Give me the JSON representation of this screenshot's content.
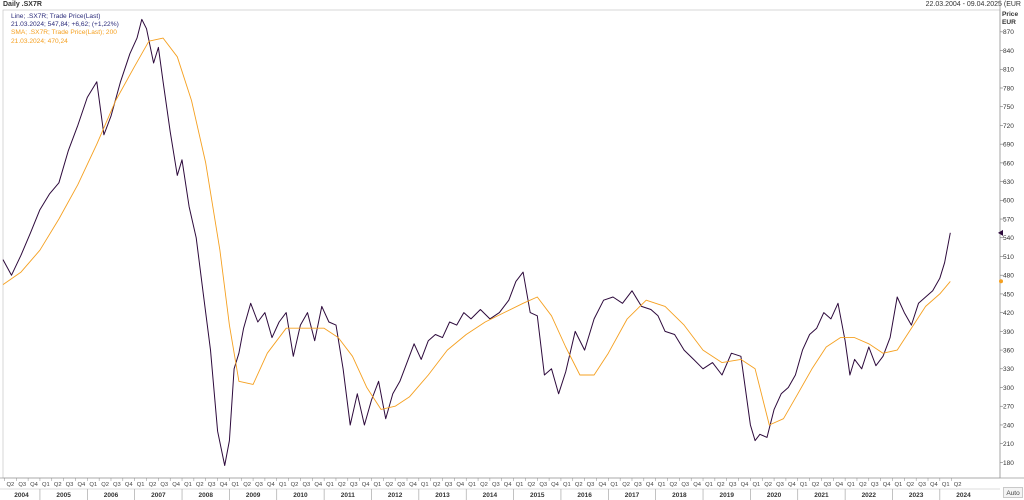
{
  "header": {
    "title": "Daily .SX7R",
    "date_range": "22.03.2004 - 09.04.2025 (EUR"
  },
  "legend": {
    "line_name": "Line; .SX7R; Trade Price(Last)",
    "line_value": "21.03.2024; 547,84; +6,62; (+1,22%)",
    "sma_name": "SMA; .SX7R; Trade Price(Last); 200",
    "sma_value": "21.03.2024; 470,24"
  },
  "axis": {
    "price_label": "Price",
    "currency": "EUR",
    "auto_button": "Auto"
  },
  "colors": {
    "price_line": "#2d0a3c",
    "sma_line": "#f5a020",
    "grid": "#e6e6e6"
  },
  "chart_data": {
    "type": "line",
    "title": "Daily .SX7R",
    "xlabel": "",
    "ylabel": "Price EUR",
    "ylim": [
      155,
      905
    ],
    "xlim": [
      2004.22,
      2025.27
    ],
    "y_ticks": [
      180,
      210,
      240,
      270,
      300,
      330,
      360,
      390,
      420,
      450,
      480,
      510,
      540,
      570,
      600,
      630,
      660,
      690,
      720,
      750,
      780,
      810,
      840,
      870
    ],
    "quarter_labels_first": "Q2",
    "year_labels": [
      "2004",
      "2005",
      "2006",
      "2007",
      "2008",
      "2009",
      "2010",
      "2011",
      "2012",
      "2013",
      "2014",
      "2015",
      "2016",
      "2017",
      "2018",
      "2019",
      "2020",
      "2021",
      "2022",
      "2023",
      "2024"
    ],
    "last_value": 547.84,
    "last_sma_value": 470.24,
    "series": [
      {
        "name": "Line; .SX7R; Trade Price(Last)",
        "x": [
          2004.22,
          2004.4,
          2004.6,
          2004.8,
          2005.0,
          2005.2,
          2005.4,
          2005.6,
          2005.8,
          2006.0,
          2006.2,
          2006.35,
          2006.5,
          2006.7,
          2006.9,
          2007.05,
          2007.15,
          2007.25,
          2007.4,
          2007.5,
          2007.6,
          2007.75,
          2007.9,
          2008.0,
          2008.15,
          2008.3,
          2008.45,
          2008.6,
          2008.75,
          2008.9,
          2009.0,
          2009.1,
          2009.2,
          2009.3,
          2009.45,
          2009.6,
          2009.75,
          2009.9,
          2010.05,
          2010.2,
          2010.35,
          2010.5,
          2010.65,
          2010.8,
          2010.95,
          2011.1,
          2011.25,
          2011.4,
          2011.55,
          2011.7,
          2011.85,
          2012.0,
          2012.15,
          2012.3,
          2012.45,
          2012.6,
          2012.75,
          2012.9,
          2013.05,
          2013.2,
          2013.35,
          2013.5,
          2013.65,
          2013.8,
          2013.95,
          2014.1,
          2014.3,
          2014.5,
          2014.7,
          2014.9,
          2015.05,
          2015.2,
          2015.35,
          2015.5,
          2015.65,
          2015.8,
          2015.95,
          2016.1,
          2016.3,
          2016.5,
          2016.7,
          2016.9,
          2017.1,
          2017.3,
          2017.5,
          2017.7,
          2017.9,
          2018.05,
          2018.2,
          2018.4,
          2018.6,
          2018.8,
          2019.0,
          2019.2,
          2019.4,
          2019.6,
          2019.8,
          2020.0,
          2020.1,
          2020.2,
          2020.35,
          2020.5,
          2020.65,
          2020.8,
          2020.95,
          2021.1,
          2021.25,
          2021.4,
          2021.55,
          2021.7,
          2021.85,
          2022.0,
          2022.1,
          2022.2,
          2022.35,
          2022.5,
          2022.65,
          2022.8,
          2022.95,
          2023.1,
          2023.25,
          2023.4,
          2023.55,
          2023.7,
          2023.85,
          2024.0,
          2024.1,
          2024.22
        ],
        "values": [
          505,
          480,
          512,
          548,
          585,
          610,
          628,
          680,
          720,
          765,
          790,
          705,
          735,
          790,
          835,
          860,
          890,
          875,
          820,
          845,
          790,
          710,
          640,
          665,
          590,
          540,
          450,
          360,
          230,
          175,
          215,
          330,
          355,
          395,
          435,
          405,
          420,
          380,
          405,
          420,
          350,
          400,
          420,
          375,
          430,
          405,
          400,
          330,
          240,
          290,
          240,
          280,
          310,
          250,
          290,
          310,
          340,
          370,
          345,
          375,
          385,
          380,
          405,
          400,
          420,
          410,
          425,
          410,
          420,
          440,
          470,
          485,
          420,
          415,
          320,
          330,
          290,
          325,
          390,
          360,
          410,
          440,
          445,
          435,
          455,
          430,
          425,
          415,
          390,
          385,
          360,
          345,
          330,
          340,
          320,
          355,
          350,
          240,
          215,
          225,
          220,
          265,
          290,
          300,
          320,
          360,
          385,
          395,
          420,
          410,
          435,
          375,
          320,
          345,
          330,
          365,
          335,
          350,
          380,
          445,
          420,
          400,
          435,
          445,
          455,
          475,
          500,
          548
        ]
      },
      {
        "name": "SMA; .SX7R; Trade Price(Last); 200",
        "x": [
          2004.22,
          2004.6,
          2005.0,
          2005.4,
          2005.8,
          2006.2,
          2006.6,
          2007.0,
          2007.3,
          2007.6,
          2007.9,
          2008.2,
          2008.5,
          2008.8,
          2009.0,
          2009.2,
          2009.5,
          2009.8,
          2010.2,
          2010.6,
          2011.0,
          2011.3,
          2011.6,
          2011.9,
          2012.2,
          2012.5,
          2012.8,
          2013.2,
          2013.6,
          2014.0,
          2014.4,
          2014.8,
          2015.2,
          2015.5,
          2015.8,
          2016.1,
          2016.4,
          2016.7,
          2017.0,
          2017.4,
          2017.8,
          2018.2,
          2018.6,
          2019.0,
          2019.4,
          2019.8,
          2020.1,
          2020.4,
          2020.7,
          2021.0,
          2021.3,
          2021.6,
          2021.9,
          2022.2,
          2022.5,
          2022.8,
          2023.1,
          2023.4,
          2023.7,
          2024.0,
          2024.22
        ],
        "values": [
          465,
          485,
          520,
          570,
          625,
          690,
          760,
          815,
          855,
          860,
          830,
          760,
          660,
          520,
          400,
          310,
          305,
          355,
          395,
          395,
          395,
          380,
          350,
          300,
          265,
          270,
          285,
          320,
          360,
          385,
          405,
          420,
          435,
          445,
          415,
          365,
          320,
          320,
          355,
          410,
          440,
          430,
          400,
          360,
          340,
          345,
          330,
          240,
          250,
          290,
          330,
          365,
          380,
          380,
          370,
          355,
          360,
          395,
          430,
          450,
          470
        ]
      }
    ]
  }
}
